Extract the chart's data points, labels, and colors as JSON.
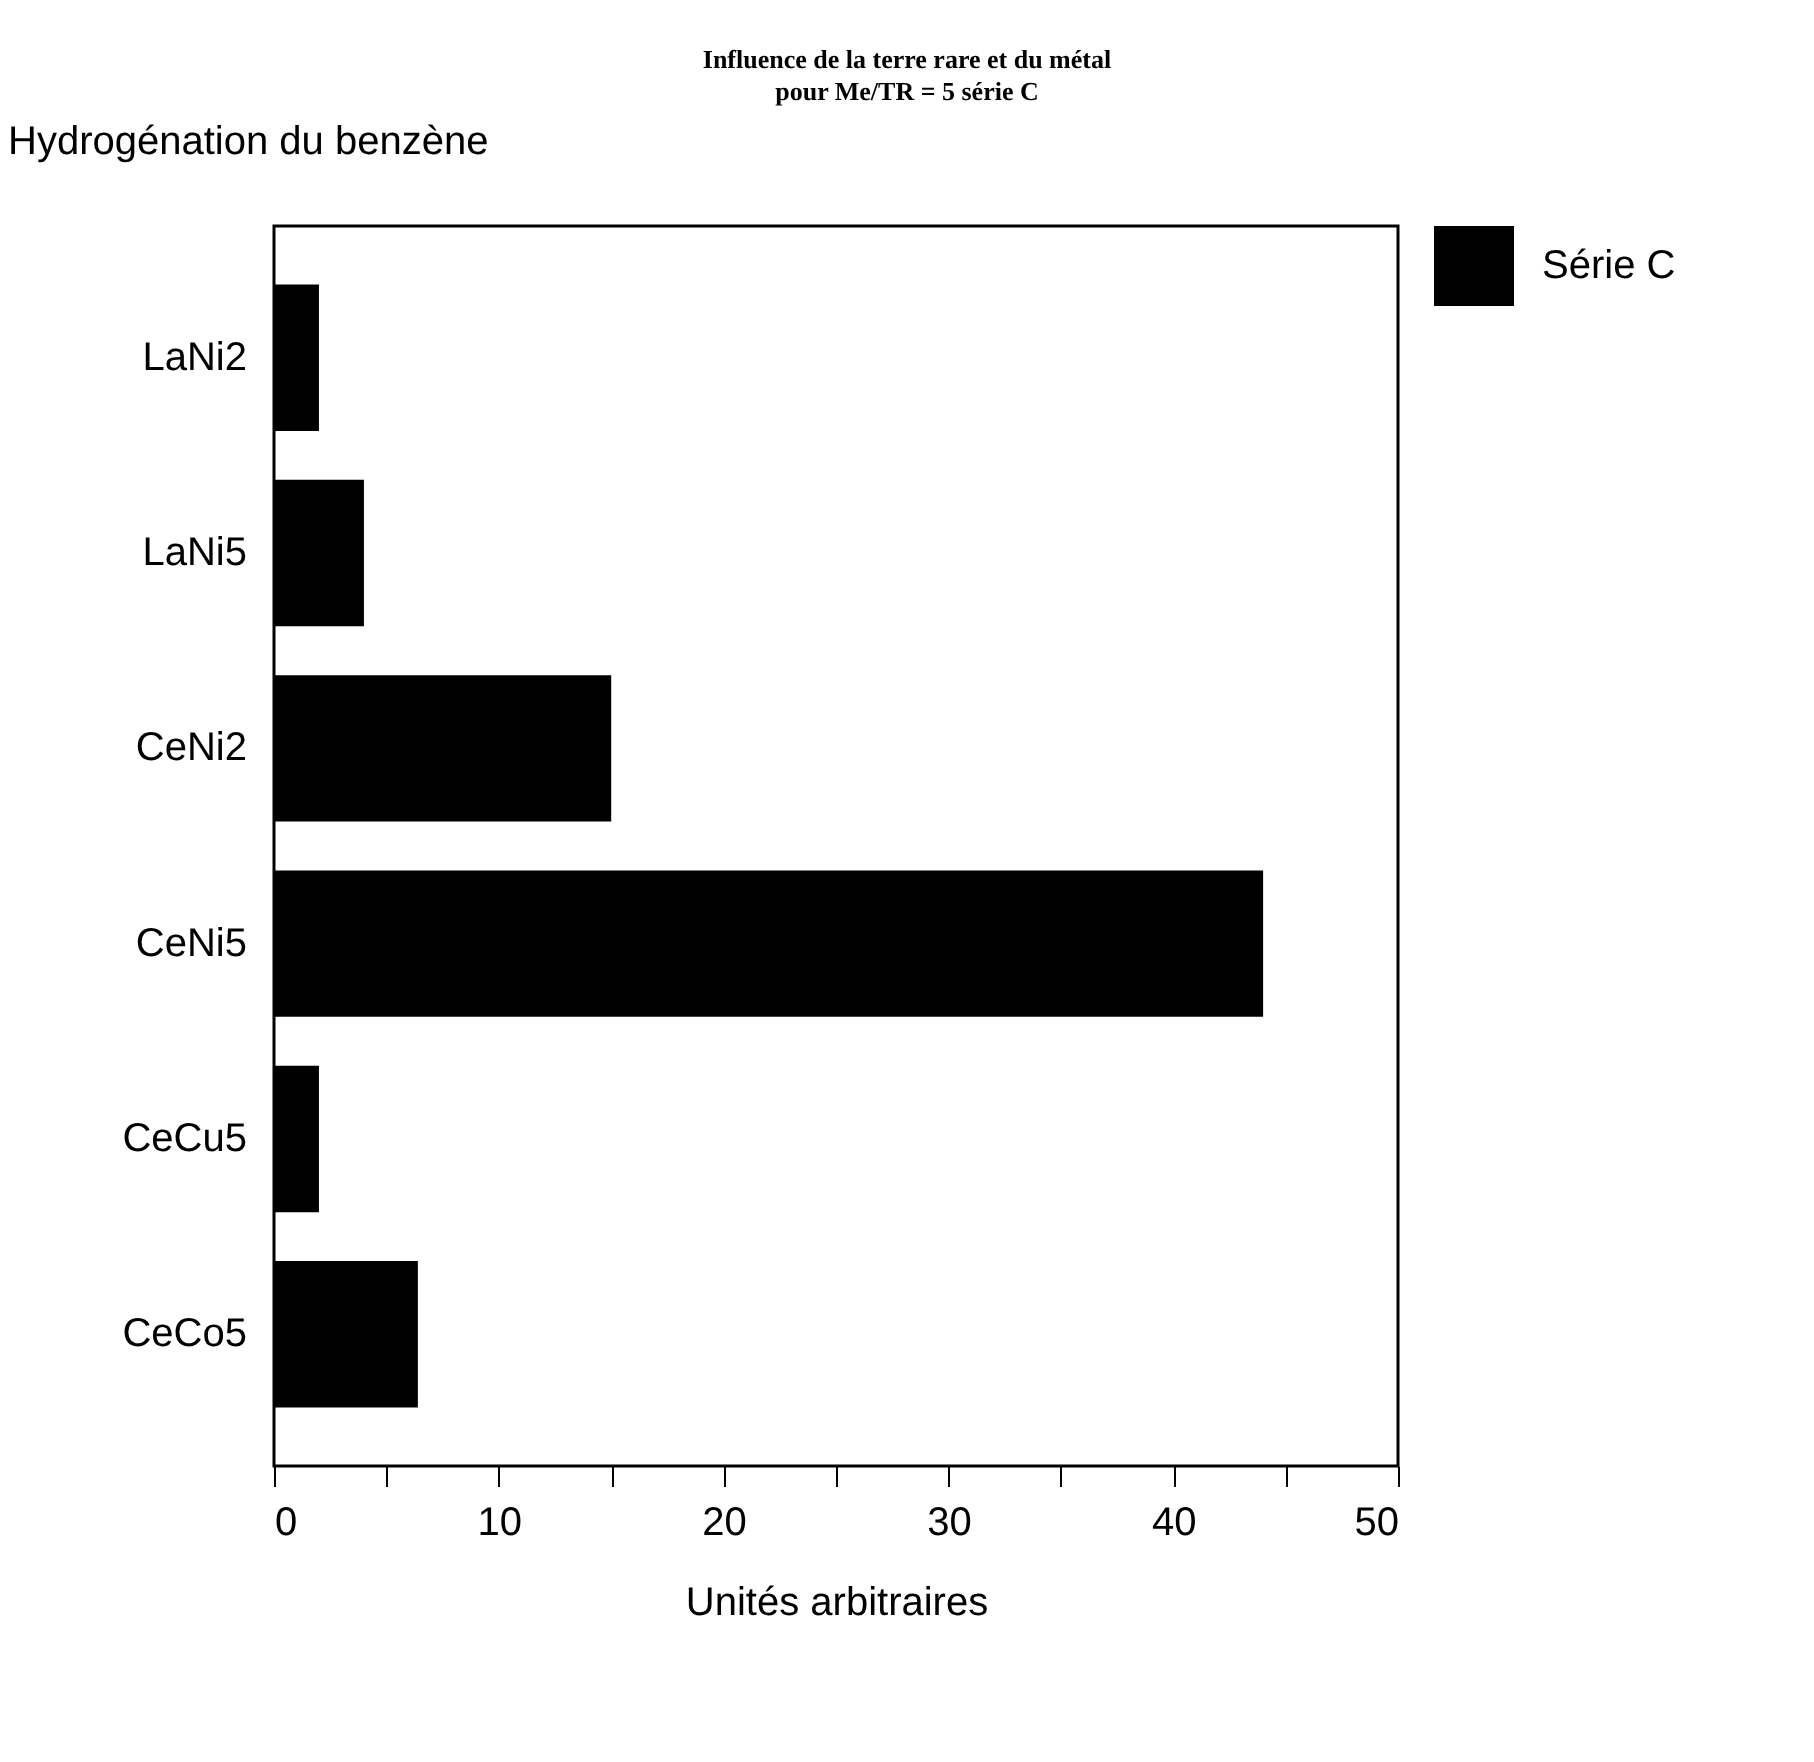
{
  "chart_data": {
    "type": "bar",
    "orientation": "horizontal",
    "title": "Influence de la terre rare et du métal\npour Me/TR = 5  série C",
    "subtitle": "Hydrogénation du benzène",
    "xlabel": "Unités arbitraires",
    "categories": [
      "LaNi2",
      "LaNi5",
      "CeNi2",
      "CeNi5",
      "CeCu5",
      "CeCo5"
    ],
    "series": [
      {
        "name": "Série C",
        "color": "#000000",
        "values": [
          2,
          4,
          15,
          44,
          2,
          6.4
        ]
      }
    ],
    "xlim": [
      0,
      50
    ],
    "xticks": [
      0,
      {
        "value": 5,
        "label": null
      },
      10,
      {
        "value": 15,
        "label": null
      },
      20,
      {
        "value": 25,
        "label": null
      },
      30,
      {
        "value": 35,
        "label": null
      },
      40,
      {
        "value": 45,
        "label": null
      },
      50
    ],
    "grid": false,
    "legend": "top right"
  }
}
